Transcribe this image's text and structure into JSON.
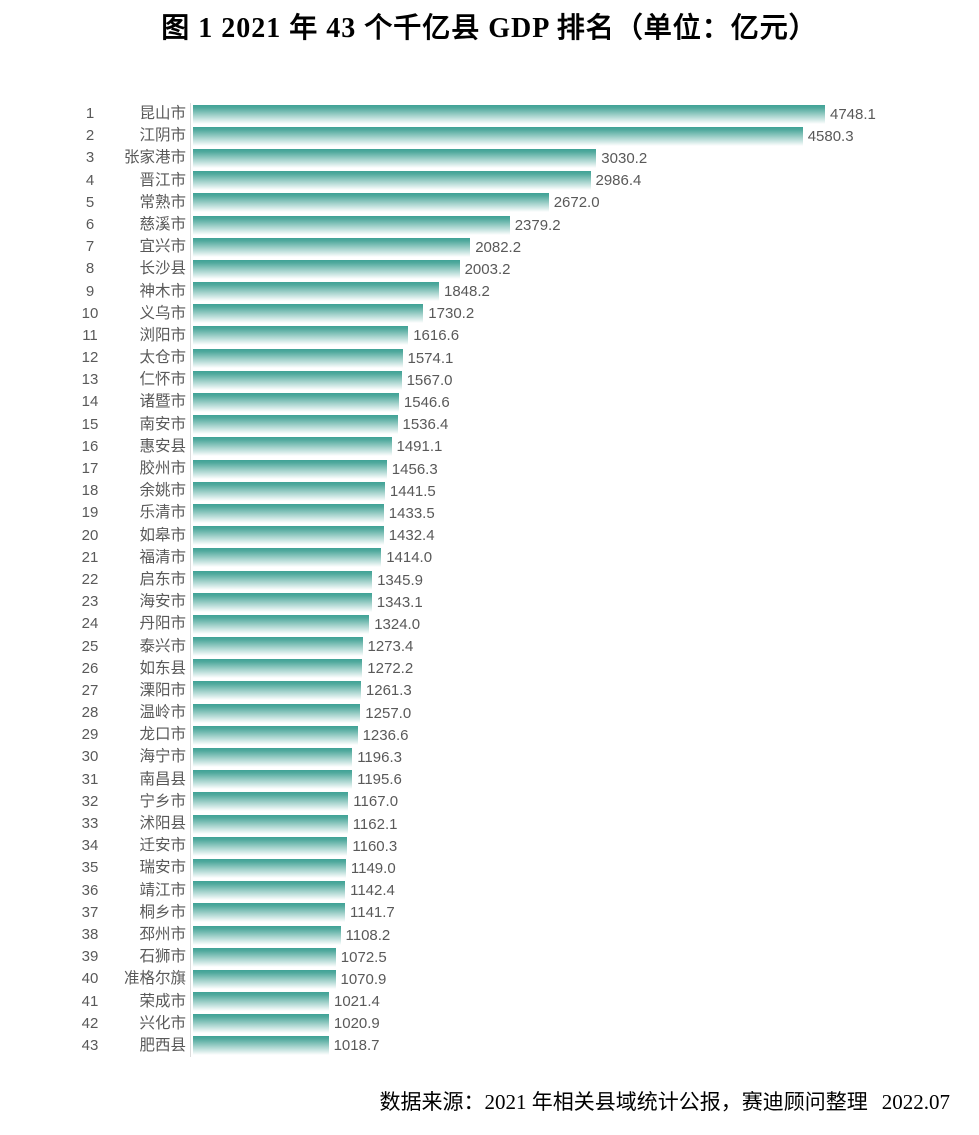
{
  "title": "图 1  2021 年 43 个千亿县 GDP 排名（单位：亿元）",
  "footer": {
    "source": "数据来源：2021 年相关县域统计公报，赛迪顾问整理",
    "date": "2022.07"
  },
  "chart_data": {
    "type": "bar",
    "orientation": "horizontal",
    "title": "图 1  2021 年 43 个千亿县 GDP 排名（单位：亿元）",
    "unit": "亿元",
    "value_labels_shown": true,
    "value_axis_shown": false,
    "xlim": [
      0,
      4750
    ],
    "ranks": [
      1,
      2,
      3,
      4,
      5,
      6,
      7,
      8,
      9,
      10,
      11,
      12,
      13,
      14,
      15,
      16,
      17,
      18,
      19,
      20,
      21,
      22,
      23,
      24,
      25,
      26,
      27,
      28,
      29,
      30,
      31,
      32,
      33,
      34,
      35,
      36,
      37,
      38,
      39,
      40,
      41,
      42,
      43
    ],
    "categories": [
      "昆山市",
      "江阴市",
      "张家港市",
      "晋江市",
      "常熟市",
      "慈溪市",
      "宜兴市",
      "长沙县",
      "神木市",
      "义乌市",
      "浏阳市",
      "太仓市",
      "仁怀市",
      "诸暨市",
      "南安市",
      "惠安县",
      "胶州市",
      "余姚市",
      "乐清市",
      "如皋市",
      "福清市",
      "启东市",
      "海安市",
      "丹阳市",
      "泰兴市",
      "如东县",
      "溧阳市",
      "温岭市",
      "龙口市",
      "海宁市",
      "南昌县",
      "宁乡市",
      "沭阳县",
      "迁安市",
      "瑞安市",
      "靖江市",
      "桐乡市",
      "邳州市",
      "石狮市",
      "准格尔旗",
      "荣成市",
      "兴化市",
      "肥西县"
    ],
    "values": [
      4748.1,
      4580.3,
      3030.2,
      2986.4,
      2672.0,
      2379.2,
      2082.2,
      2003.2,
      1848.2,
      1730.2,
      1616.6,
      1574.1,
      1567.0,
      1546.6,
      1536.4,
      1491.1,
      1456.3,
      1441.5,
      1433.5,
      1432.4,
      1414.0,
      1345.9,
      1343.1,
      1324.0,
      1273.4,
      1272.2,
      1261.3,
      1257.0,
      1236.6,
      1196.3,
      1195.6,
      1167.0,
      1162.1,
      1160.3,
      1149.0,
      1142.4,
      1141.7,
      1108.2,
      1072.5,
      1070.9,
      1021.4,
      1020.9,
      1018.7
    ],
    "colors": {
      "bar_gradient_top": "#3fa296",
      "bar_gradient_bottom": "#ffffff",
      "axis_line": "#dcdcdc",
      "label_text": "#595959",
      "title_text": "#000000"
    },
    "legend": "none",
    "grid": false
  }
}
